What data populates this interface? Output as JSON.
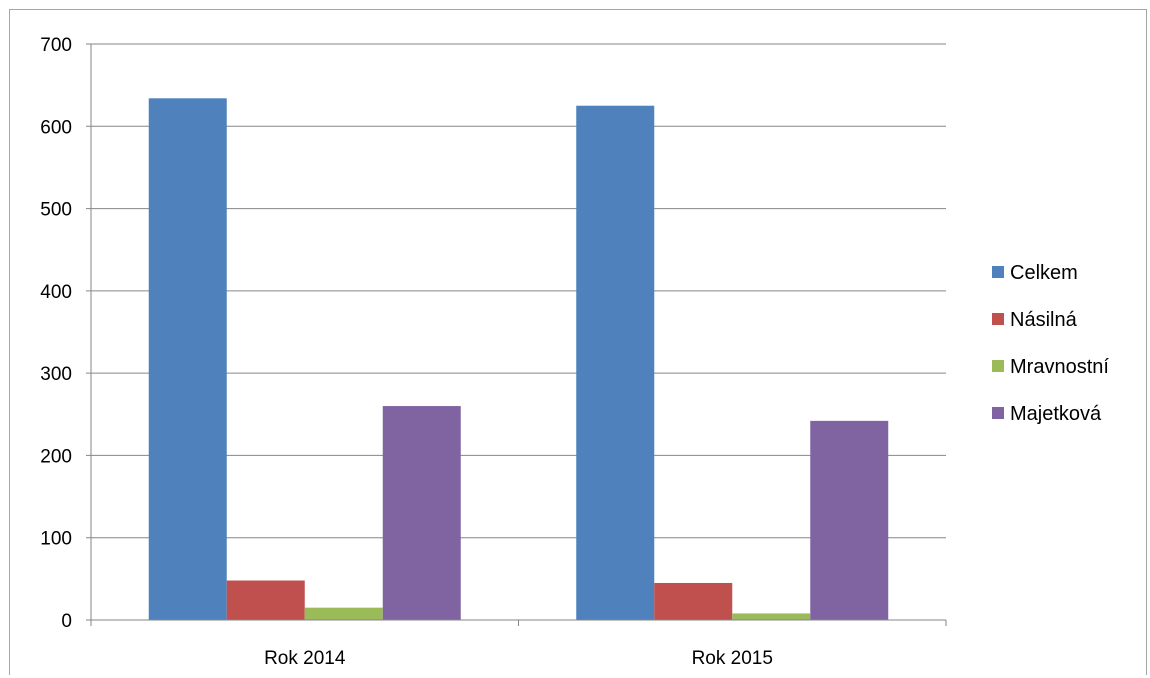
{
  "chart_data": {
    "type": "bar",
    "categories": [
      "Rok 2014",
      "Rok 2015"
    ],
    "series": [
      {
        "name": "Celkem",
        "values": [
          634,
          625
        ],
        "color": "#4f81bd"
      },
      {
        "name": "Násilná",
        "values": [
          48,
          45
        ],
        "color": "#c0504d"
      },
      {
        "name": "Mravnostní",
        "values": [
          15,
          8
        ],
        "color": "#9bbb59"
      },
      {
        "name": "Majetková",
        "values": [
          260,
          242
        ],
        "color": "#8064a2"
      }
    ],
    "ylim": [
      0,
      700
    ],
    "yticks": [
      0,
      100,
      200,
      300,
      400,
      500,
      600,
      700
    ],
    "grid": true,
    "legend_position": "right"
  }
}
